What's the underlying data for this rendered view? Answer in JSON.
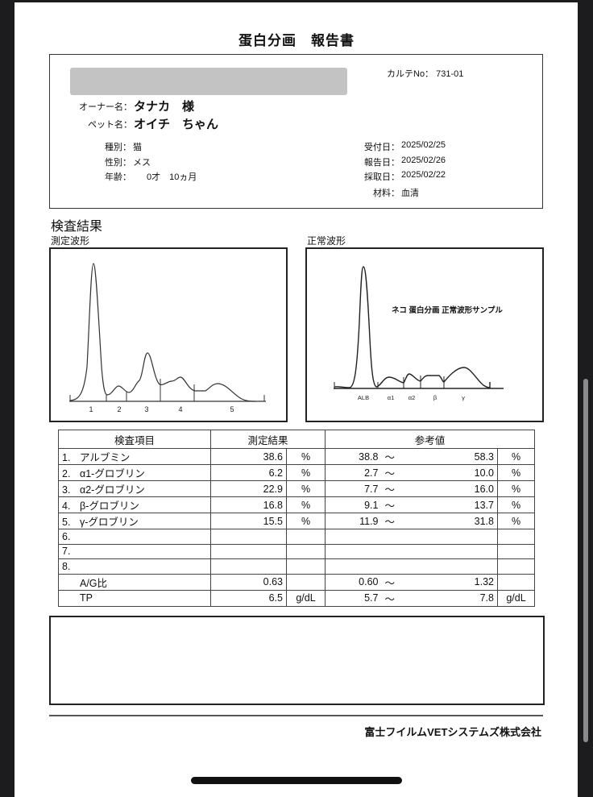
{
  "report": {
    "title": "蛋白分画　報告書",
    "chart_no_label": "カルテNo：",
    "chart_no": "731-01",
    "owner_label": "オーナー名：",
    "owner_name": "タナカ　様",
    "pet_label": "ペット名：",
    "pet_name": "オイチ　ちゃん",
    "species_label": "種別：",
    "species": "猫",
    "sex_label": "性別：",
    "sex": "メス",
    "age_label": "年齢：",
    "age": "0才　10ヵ月",
    "received_label": "受付日：",
    "received": "2025/02/25",
    "reported_label": "報告日：",
    "reported": "2025/02/26",
    "collected_label": "採取日：",
    "collected": "2025/02/22",
    "material_label": "材料：",
    "material": "血清"
  },
  "results": {
    "section_title": "検査結果",
    "measured_wave_title": "測定波形",
    "normal_wave_title": "正常波形",
    "measured_wave_labels": [
      "1",
      "2",
      "3",
      "4",
      "5"
    ],
    "normal_wave_caption": "ネコ 蛋白分画 正常波形サンプル",
    "normal_wave_labels": [
      "ALB",
      "α1",
      "α2",
      "β",
      "γ"
    ],
    "headers": {
      "item": "検査項目",
      "result": "測定結果",
      "reference": "参考値"
    },
    "rows": [
      {
        "no": "1.",
        "item": "アルブミン",
        "value": "38.6",
        "unit": "%",
        "ref_low": "38.8",
        "tilde": "～",
        "ref_high": "58.3",
        "ref_unit": "%"
      },
      {
        "no": "2.",
        "item": "α1-グロブリン",
        "value": "6.2",
        "unit": "%",
        "ref_low": "2.7",
        "tilde": "～",
        "ref_high": "10.0",
        "ref_unit": "%"
      },
      {
        "no": "3.",
        "item": "α2-グロブリン",
        "value": "22.9",
        "unit": "%",
        "ref_low": "7.7",
        "tilde": "～",
        "ref_high": "16.0",
        "ref_unit": "%"
      },
      {
        "no": "4.",
        "item": "β-グロブリン",
        "value": "16.8",
        "unit": "%",
        "ref_low": "9.1",
        "tilde": "～",
        "ref_high": "13.7",
        "ref_unit": "%"
      },
      {
        "no": "5.",
        "item": "γ-グロブリン",
        "value": "15.5",
        "unit": "%",
        "ref_low": "11.9",
        "tilde": "～",
        "ref_high": "31.8",
        "ref_unit": "%"
      },
      {
        "no": "6.",
        "item": "",
        "value": "",
        "unit": "",
        "ref_low": "",
        "tilde": "",
        "ref_high": "",
        "ref_unit": ""
      },
      {
        "no": "7.",
        "item": "",
        "value": "",
        "unit": "",
        "ref_low": "",
        "tilde": "",
        "ref_high": "",
        "ref_unit": ""
      },
      {
        "no": "8.",
        "item": "",
        "value": "",
        "unit": "",
        "ref_low": "",
        "tilde": "",
        "ref_high": "",
        "ref_unit": ""
      },
      {
        "no": "",
        "item": "A/G比",
        "value": "0.63",
        "unit": "",
        "ref_low": "0.60",
        "tilde": "～",
        "ref_high": "1.32",
        "ref_unit": ""
      },
      {
        "no": "",
        "item": "TP",
        "value": "6.5",
        "unit": "g/dL",
        "ref_low": "5.7",
        "tilde": "～",
        "ref_high": "7.8",
        "ref_unit": "g/dL"
      }
    ]
  },
  "comment": "",
  "footer": {
    "company": "富士フイルムVETシステムズ株式会社"
  }
}
